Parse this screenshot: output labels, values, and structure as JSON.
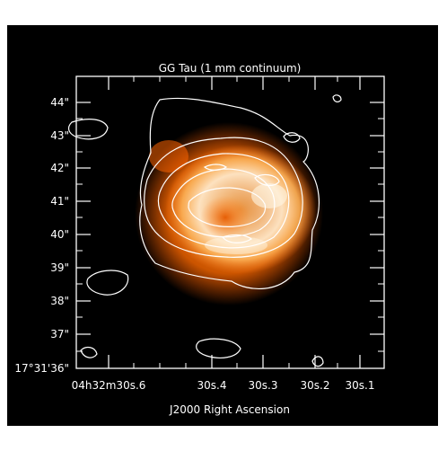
{
  "figure": {
    "title": "GG Tau (1 mm continuum)",
    "x_axis_label": "J2000 Right Ascension",
    "colors": {
      "background": "#000000",
      "axes": "#ffffff",
      "contours": "#ffffff",
      "emission_core": "#fff2cc",
      "emission_mid": "#ff9a33",
      "emission_outer": "#ff5a00"
    }
  },
  "y_ticks": [
    {
      "label": "44\""
    },
    {
      "label": "43\""
    },
    {
      "label": "42\""
    },
    {
      "label": "41\""
    },
    {
      "label": "40\""
    },
    {
      "label": "39\""
    },
    {
      "label": "38\""
    },
    {
      "label": "37\""
    },
    {
      "label": "17°31'36\""
    }
  ],
  "x_ticks": [
    {
      "label": "04h32m30s.6"
    },
    {
      "label": "30s.4"
    },
    {
      "label": "30s.3"
    },
    {
      "label": "30s.2"
    },
    {
      "label": "30s.1"
    }
  ]
}
